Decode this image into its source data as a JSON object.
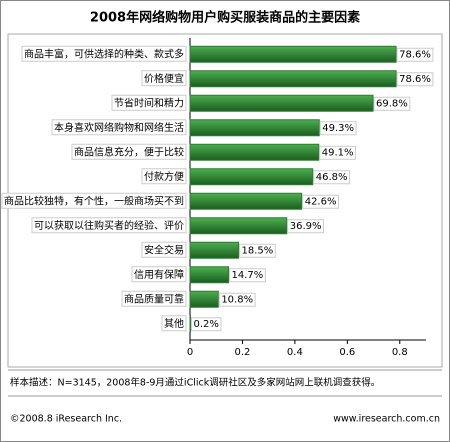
{
  "chart_data": {
    "type": "bar",
    "orientation": "horizontal",
    "title": "2008年网络购物用户购买服装商品的主要因素",
    "categories": [
      "商品丰富，可供选择的种类、款式多",
      "价格便宜",
      "节省时间和精力",
      "本身喜欢网络购物和网络生活",
      "商品信息充分，便于比较",
      "付款方便",
      "商品比较独特，有个性，一般商场买不到",
      "可以获取以往购买者的经验、评价",
      "安全交易",
      "信用有保障",
      "商品质量可靠",
      "其他"
    ],
    "values": [
      0.786,
      0.786,
      0.698,
      0.493,
      0.491,
      0.468,
      0.426,
      0.369,
      0.185,
      0.147,
      0.108,
      0.002
    ],
    "value_labels": [
      "78.6%",
      "78.6%",
      "69.8%",
      "49.3%",
      "49.1%",
      "46.8%",
      "42.6%",
      "36.9%",
      "18.5%",
      "14.7%",
      "10.8%",
      "0.2%"
    ],
    "color": "#2e7d32",
    "xlim": [
      0,
      0.9
    ],
    "xticks": [
      0,
      0.2,
      0.4,
      0.6,
      0.8
    ],
    "note": "样本描述：N=3145，2008年8-9月通过iClick调研社区及多家网站网上联机调查获得。",
    "copyright": "©2008.8 iResearch Inc.",
    "website": "www.iresearch.com.cn"
  }
}
